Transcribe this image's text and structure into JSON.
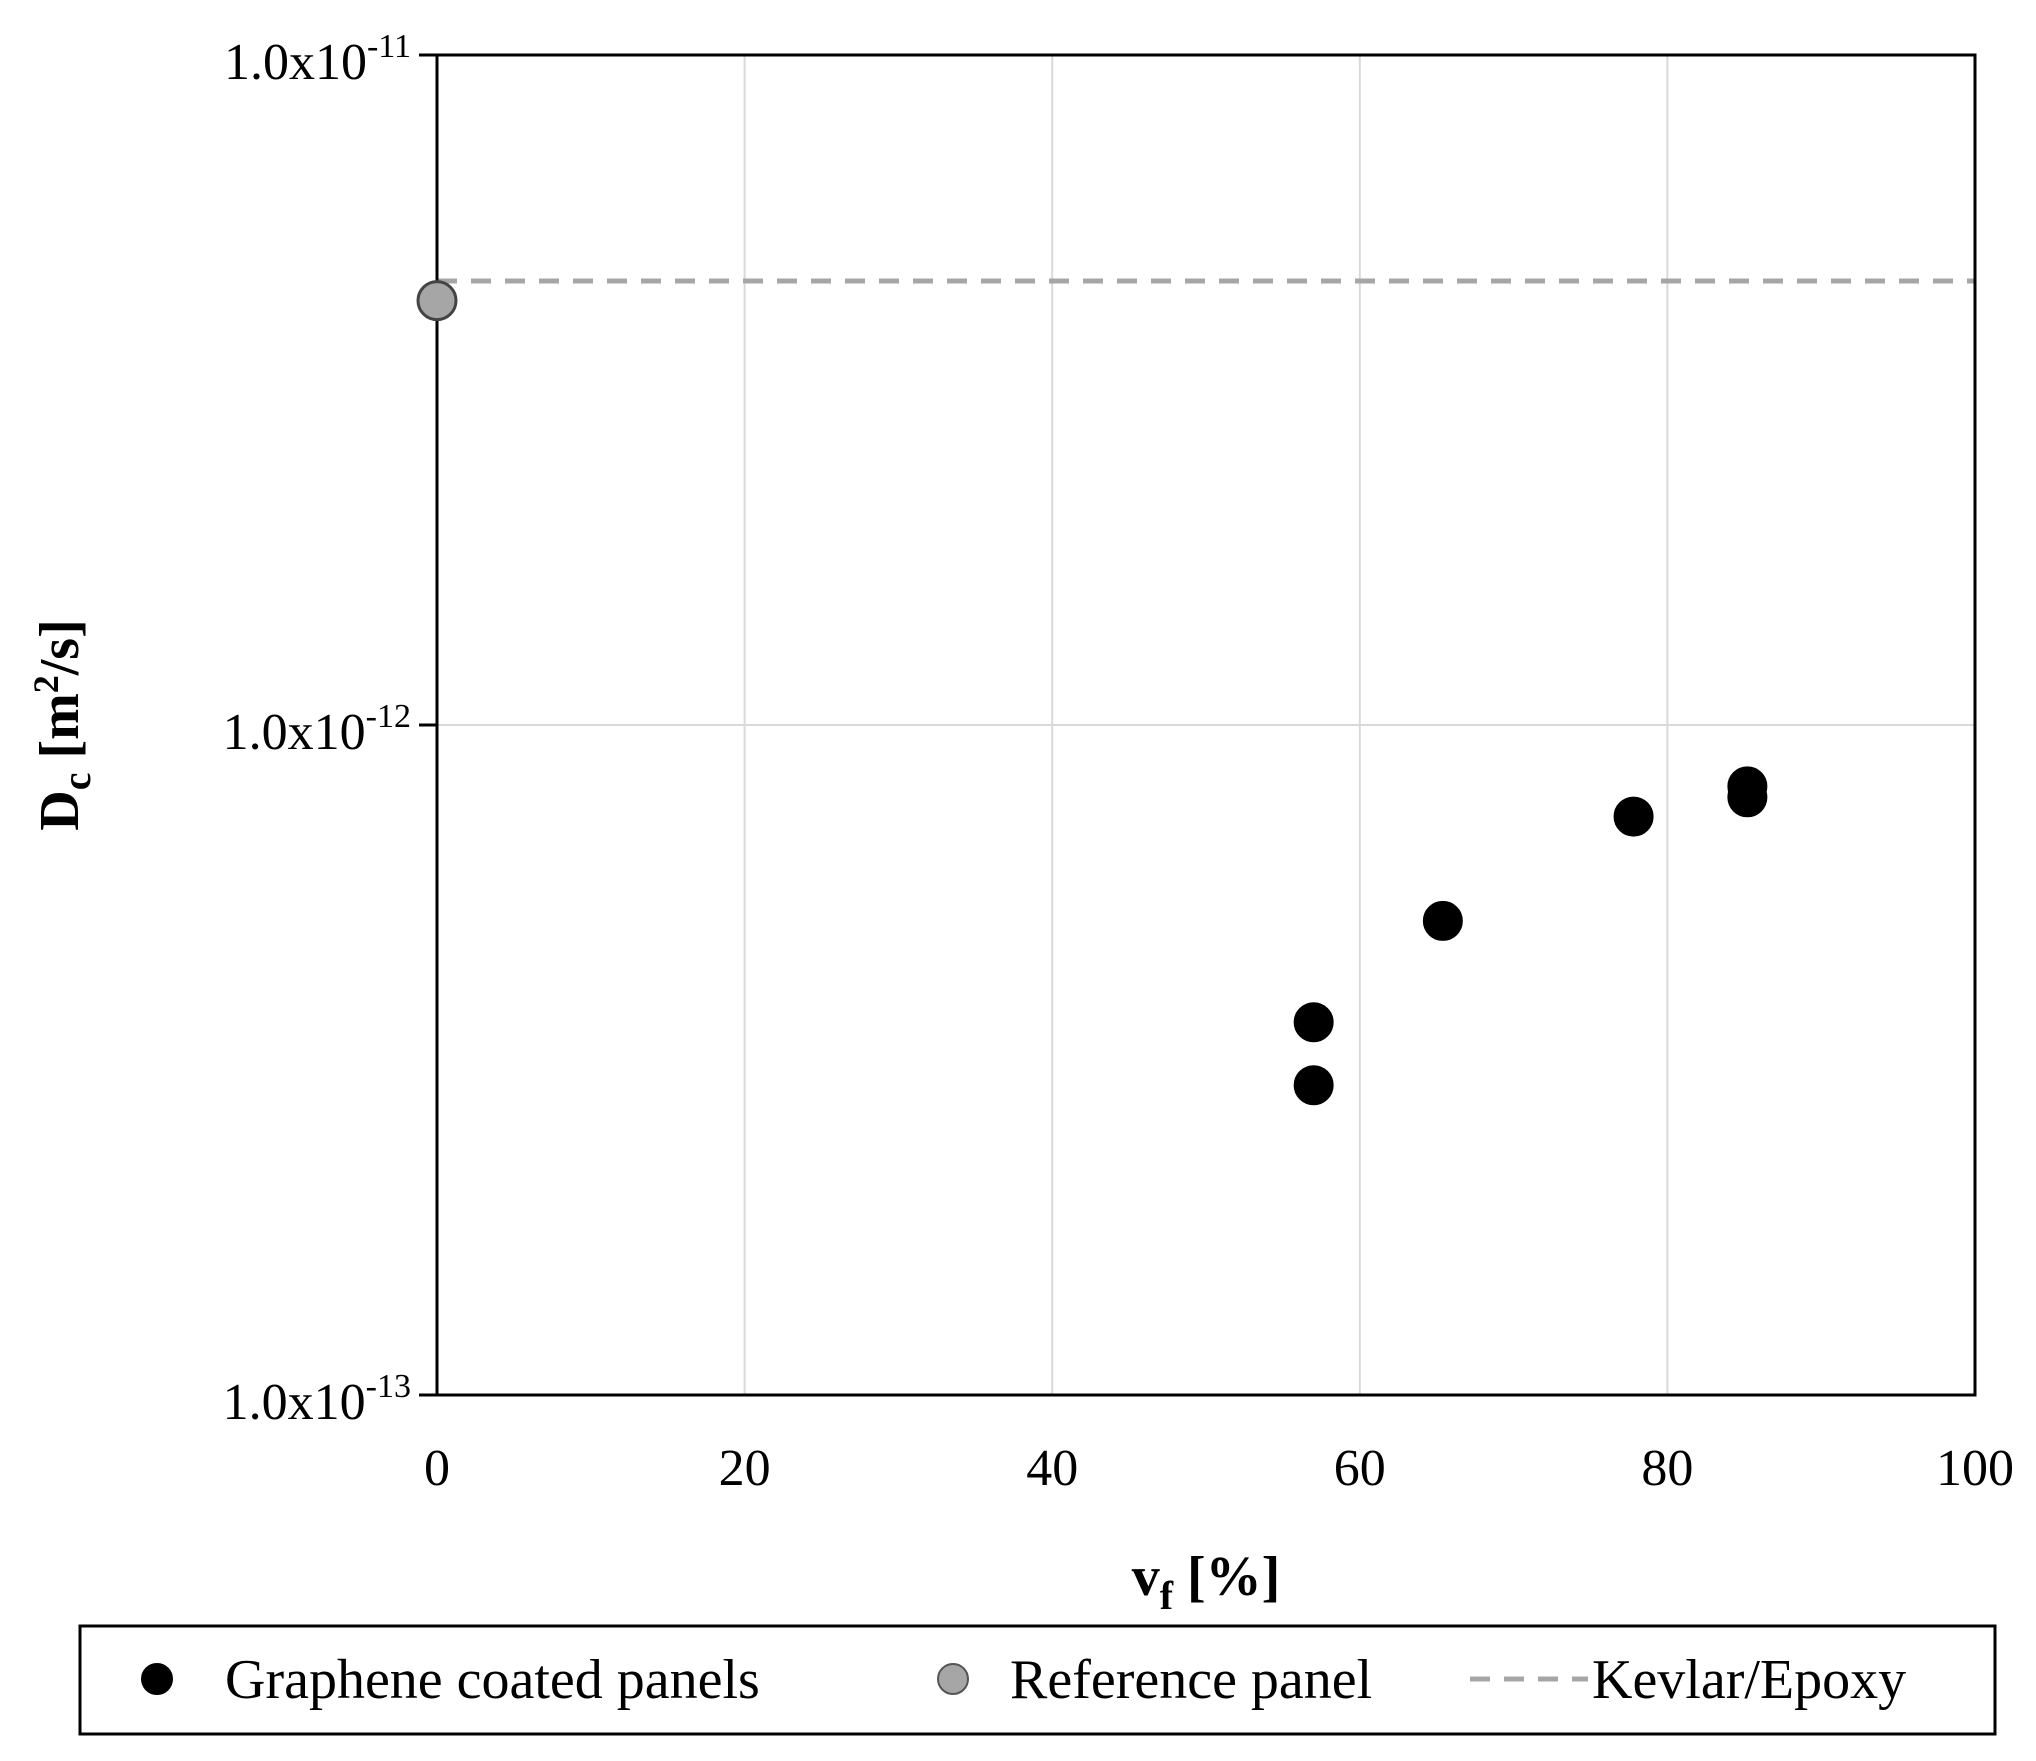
{
  "chart_data": {
    "type": "scatter",
    "x_axis": {
      "label_main": "v",
      "label_sub": "f",
      "label_rest": " [%]",
      "range": [
        0,
        100
      ],
      "ticks": [
        0,
        20,
        40,
        60,
        80,
        100
      ],
      "tick_labels": [
        "0",
        "20",
        "40",
        "60",
        "80",
        "100"
      ]
    },
    "y_axis": {
      "scale": "log",
      "label_main": "D",
      "label_sub": "c",
      "label_unit_open": " [m",
      "label_unit_sup": "2",
      "label_unit_close": "/s]",
      "range": [
        1e-13,
        1e-11
      ],
      "ticks": [
        {
          "value": 1e-13,
          "mantissa": "1.0x10",
          "exponent": "-13"
        },
        {
          "value": 1e-12,
          "mantissa": "1.0x10",
          "exponent": "-12"
        },
        {
          "value": 1e-11,
          "mantissa": "1.0x10",
          "exponent": "-11"
        }
      ]
    },
    "grid": "vertical and horizontal major gridlines",
    "series": [
      {
        "name": "Graphene coated panels",
        "marker": "filled-circle",
        "color": "#000000",
        "points": [
          {
            "x": 57,
            "y": 3.6e-13
          },
          {
            "x": 57,
            "y": 2.9e-13
          },
          {
            "x": 65.4,
            "y": 5.1e-13
          },
          {
            "x": 77.8,
            "y": 7.3e-13
          },
          {
            "x": 85.2,
            "y": 8.1e-13
          },
          {
            "x": 85.2,
            "y": 7.8e-13
          }
        ]
      },
      {
        "name": "Reference panel",
        "marker": "gray-circle",
        "color": "#a6a6a6",
        "points": [
          {
            "x": 0,
            "y": 4.3e-12
          }
        ]
      },
      {
        "name": "Kevlar/Epoxy",
        "marker": "dashed-line",
        "color": "#a6a6a6",
        "constant_y": 4.6e-12
      }
    ],
    "legend_position": "bottom"
  }
}
